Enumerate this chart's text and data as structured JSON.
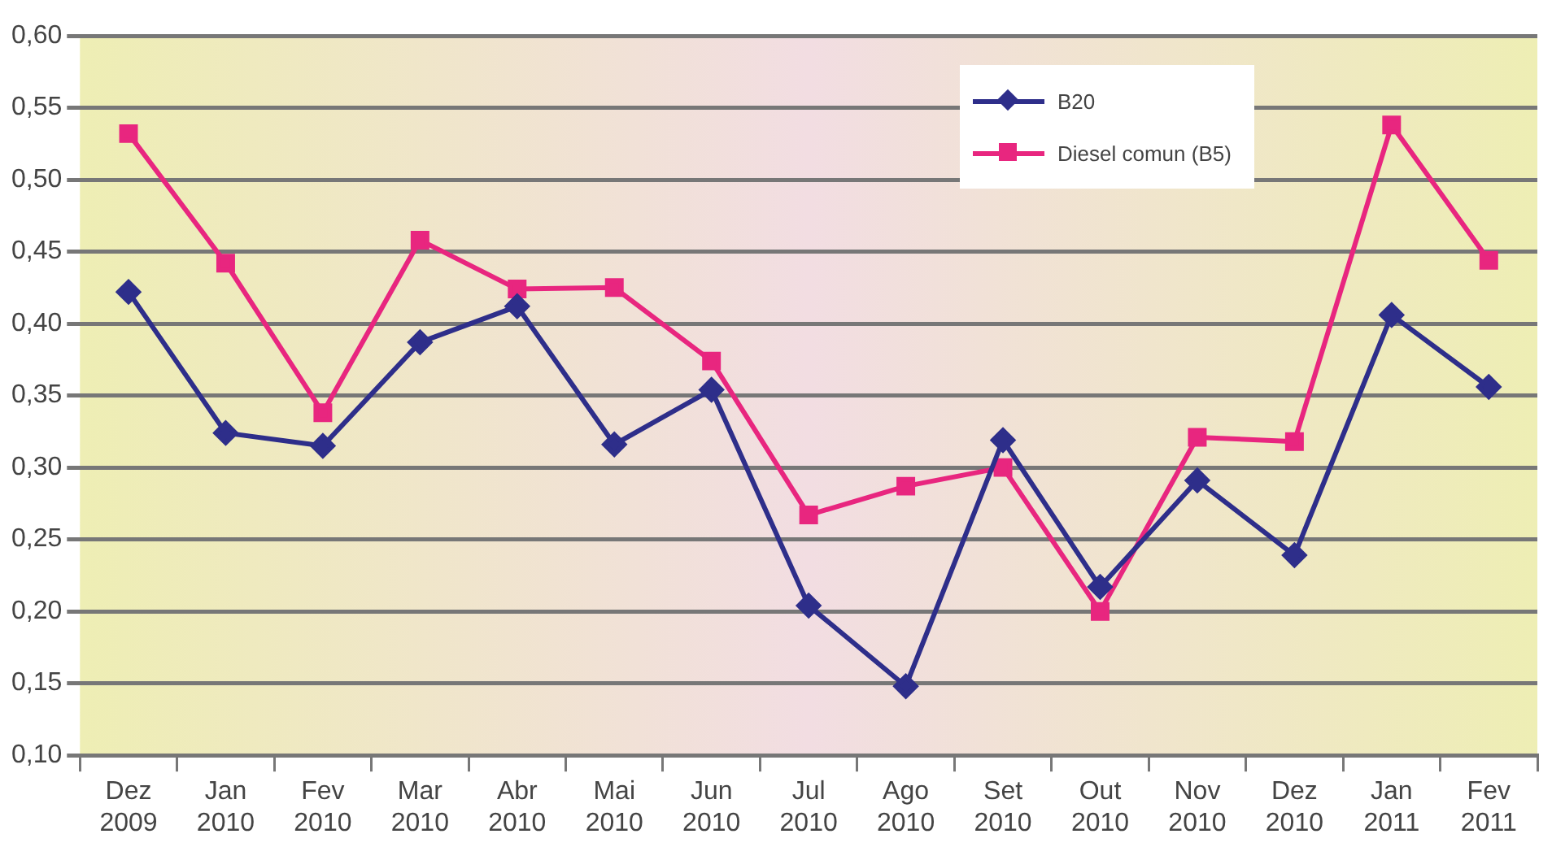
{
  "chart_data": {
    "type": "line",
    "categories": [
      "Dez 2009",
      "Jan 2010",
      "Fev 2010",
      "Mar 2010",
      "Abr 2010",
      "Mai 2010",
      "Jun 2010",
      "Jul 2010",
      "Ago 2010",
      "Set 2010",
      "Out 2010",
      "Nov 2010",
      "Dez 2010",
      "Jan 2011",
      "Fev 2011"
    ],
    "series": [
      {
        "name": "B20",
        "color": "#2e2e8a",
        "marker": "diamond",
        "values": [
          0.422,
          0.324,
          0.315,
          0.387,
          0.412,
          0.316,
          0.354,
          0.204,
          0.148,
          0.319,
          0.217,
          0.291,
          0.239,
          0.406,
          0.356
        ]
      },
      {
        "name": "Diesel comun (B5)",
        "color": "#e8267f",
        "marker": "square",
        "values": [
          0.532,
          0.442,
          0.338,
          0.458,
          0.424,
          0.425,
          0.374,
          0.267,
          0.287,
          0.3,
          0.2,
          0.321,
          0.318,
          0.538,
          0.444
        ]
      }
    ],
    "ylim": [
      0.1,
      0.6
    ],
    "yticks": [
      {
        "value": 0.1,
        "label": "0,10"
      },
      {
        "value": 0.15,
        "label": "0,15"
      },
      {
        "value": 0.2,
        "label": "0,20"
      },
      {
        "value": 0.25,
        "label": "0,25"
      },
      {
        "value": 0.3,
        "label": "0,30"
      },
      {
        "value": 0.35,
        "label": "0,35"
      },
      {
        "value": 0.4,
        "label": "0,40"
      },
      {
        "value": 0.45,
        "label": "0,45"
      },
      {
        "value": 0.5,
        "label": "0,50"
      },
      {
        "value": 0.55,
        "label": "0,55"
      },
      {
        "value": 0.6,
        "label": "0,60"
      }
    ],
    "grid": "y",
    "legend": "top right",
    "line_style": "solid"
  }
}
